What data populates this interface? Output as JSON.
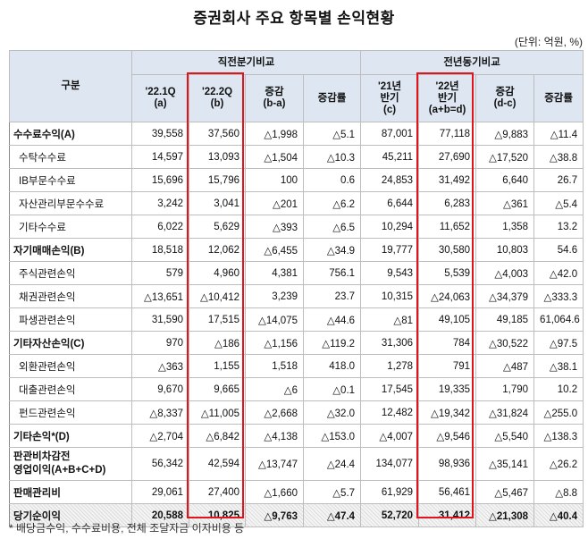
{
  "title": "증권회사 주요 항목별 손익현황",
  "unit": "(단위: 억원, %)",
  "header": {
    "category": "구분",
    "group1": "직전분기비교",
    "group2": "전년동기비교",
    "cols": [
      [
        "'22.1Q",
        "(a)"
      ],
      [
        "'22.2Q",
        "(b)"
      ],
      [
        "증감",
        "(b-a)"
      ],
      [
        "증감률",
        ""
      ],
      [
        "'21년",
        "반기",
        "(c)"
      ],
      [
        "'22년",
        "반기",
        "(a+b=d)"
      ],
      [
        "증감",
        "(d-c)"
      ],
      [
        "증감률",
        ""
      ]
    ]
  },
  "rows": [
    {
      "label": "수수료수익(A)",
      "level": "main",
      "v": [
        "39,558",
        "37,560",
        "△1,998",
        "△5.1",
        "87,001",
        "77,118",
        "△9,883",
        "△11.4"
      ]
    },
    {
      "label": "수탁수수료",
      "level": "sub",
      "v": [
        "14,597",
        "13,093",
        "△1,504",
        "△10.3",
        "45,211",
        "27,690",
        "△17,520",
        "△38.8"
      ]
    },
    {
      "label": "IB부문수수료",
      "level": "sub",
      "v": [
        "15,696",
        "15,796",
        "100",
        "0.6",
        "24,853",
        "31,492",
        "6,640",
        "26.7"
      ]
    },
    {
      "label": "자산관리부문수수료",
      "level": "sub",
      "v": [
        "3,242",
        "3,041",
        "△201",
        "△6.2",
        "6,644",
        "6,283",
        "△361",
        "△5.4"
      ]
    },
    {
      "label": "기타수수료",
      "level": "sub",
      "v": [
        "6,022",
        "5,629",
        "△393",
        "△6.5",
        "10,294",
        "11,652",
        "1,358",
        "13.2"
      ]
    },
    {
      "label": "자기매매손익(B)",
      "level": "main",
      "v": [
        "18,518",
        "12,062",
        "△6,455",
        "△34.9",
        "19,777",
        "30,580",
        "10,803",
        "54.6"
      ]
    },
    {
      "label": "주식관련손익",
      "level": "sub",
      "v": [
        "579",
        "4,960",
        "4,381",
        "756.1",
        "9,543",
        "5,539",
        "△4,003",
        "△42.0"
      ]
    },
    {
      "label": "채권관련손익",
      "level": "sub",
      "v": [
        "△13,651",
        "△10,412",
        "3,239",
        "23.7",
        "10,315",
        "△24,063",
        "△34,379",
        "△333.3"
      ]
    },
    {
      "label": "파생관련손익",
      "level": "sub",
      "v": [
        "31,590",
        "17,515",
        "△14,075",
        "△44.6",
        "△81",
        "49,105",
        "49,185",
        "61,064.6"
      ]
    },
    {
      "label": "기타자산손익(C)",
      "level": "main",
      "v": [
        "970",
        "△186",
        "△1,156",
        "△119.2",
        "31,306",
        "784",
        "△30,522",
        "△97.5"
      ]
    },
    {
      "label": "외환관련손익",
      "level": "sub",
      "v": [
        "△363",
        "1,155",
        "1,518",
        "418.0",
        "1,278",
        "791",
        "△487",
        "△38.1"
      ]
    },
    {
      "label": "대출관련손익",
      "level": "sub",
      "v": [
        "9,670",
        "9,665",
        "△6",
        "△0.1",
        "17,545",
        "19,335",
        "1,790",
        "10.2"
      ]
    },
    {
      "label": "펀드관련손익",
      "level": "sub",
      "v": [
        "△8,337",
        "△11,005",
        "△2,668",
        "△32.0",
        "12,482",
        "△19,342",
        "△31,824",
        "△255.0"
      ]
    },
    {
      "label": "기타손익*(D)",
      "level": "main",
      "v": [
        "△2,704",
        "△6,842",
        "△4,138",
        "△153.0",
        "△4,007",
        "△9,546",
        "△5,540",
        "△138.3"
      ]
    },
    {
      "label": "판관비차감전 영업이익(A+B+C+D)",
      "level": "main2",
      "v": [
        "56,342",
        "42,594",
        "△13,747",
        "△24.4",
        "134,077",
        "98,936",
        "△35,141",
        "△26.2"
      ]
    },
    {
      "label": "판매관리비",
      "level": "main",
      "v": [
        "29,061",
        "27,400",
        "△1,660",
        "△5.7",
        "61,929",
        "56,461",
        "△5,467",
        "△8.8"
      ]
    },
    {
      "label": "당기순이익",
      "level": "total",
      "v": [
        "20,588",
        "10,825",
        "△9,763",
        "△47.4",
        "52,720",
        "31,412",
        "△21,308",
        "△40.4"
      ]
    }
  ],
  "note": "* 배당금수익, 수수료비용, 전체 조달자금 이자비용 등"
}
